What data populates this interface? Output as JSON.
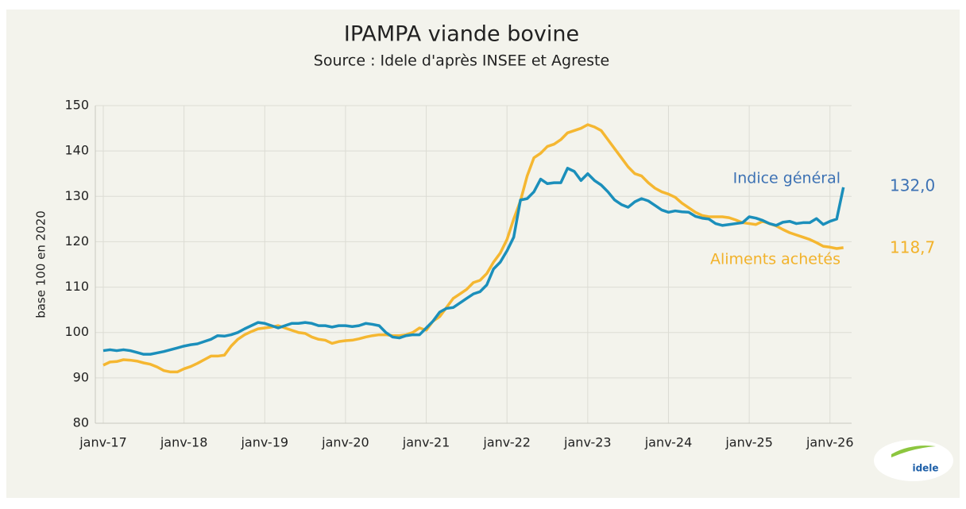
{
  "chart_data": {
    "type": "line",
    "title": "IPAMPA viande bovine",
    "subtitle": "Source : Idele d'après INSEE et Agreste",
    "ylabel": "base 100 en 2020",
    "logo": "idele",
    "categories": [
      "janv-17",
      null,
      null,
      null,
      null,
      null,
      null,
      null,
      null,
      null,
      null,
      null,
      "janv-18",
      null,
      null,
      null,
      null,
      null,
      null,
      null,
      null,
      null,
      null,
      null,
      "janv-19",
      null,
      null,
      null,
      null,
      null,
      null,
      null,
      null,
      null,
      null,
      null,
      "janv-20",
      null,
      null,
      null,
      null,
      null,
      null,
      null,
      null,
      null,
      null,
      null,
      "janv-21",
      null,
      null,
      null,
      null,
      null,
      null,
      null,
      null,
      null,
      null,
      null,
      "janv-22",
      null,
      null,
      null,
      null,
      null,
      null,
      null,
      null,
      null,
      null,
      null,
      "janv-23",
      null,
      null,
      null,
      null,
      null,
      null,
      null,
      null,
      null,
      null,
      null,
      "janv-24",
      null,
      null,
      null,
      null,
      null,
      null,
      null,
      null,
      null,
      null,
      null,
      "janv-25",
      null,
      null,
      null,
      null,
      null,
      null,
      null,
      null,
      null,
      null,
      null,
      "janv-26",
      null,
      null
    ],
    "ylim": [
      80,
      150
    ],
    "yticks": [
      80,
      90,
      100,
      110,
      120,
      130,
      140,
      150
    ],
    "grid": true,
    "series": [
      {
        "name": "Indice général",
        "color": "#1b8fbb",
        "label_color": "#3d72b4",
        "values": [
          96,
          96.2,
          96,
          96.2,
          96,
          95.6,
          95.2,
          95.2,
          95.5,
          95.8,
          96.2,
          96.6,
          97,
          97.3,
          97.5,
          98,
          98.5,
          99.3,
          99.2,
          99.5,
          100,
          100.8,
          101.5,
          102.2,
          102,
          101.5,
          101,
          101.5,
          102,
          102,
          102.2,
          102,
          101.5,
          101.5,
          101.2,
          101.5,
          101.5,
          101.3,
          101.5,
          102,
          101.8,
          101.5,
          100,
          99,
          98.8,
          99.3,
          99.5,
          99.5,
          101,
          102.5,
          104.5,
          105.3,
          105.5,
          106.5,
          107.5,
          108.5,
          109,
          110.5,
          114,
          115.5,
          118,
          121,
          129.2,
          129.5,
          131,
          133.8,
          132.8,
          133,
          133,
          136.2,
          135.5,
          133.5,
          135,
          133.5,
          132.5,
          131,
          129.2,
          128.2,
          127.6,
          128.8,
          129.5,
          129,
          128,
          127,
          126.5,
          126.8,
          126.6,
          126.5,
          125.6,
          125.2,
          125,
          124,
          123.6,
          123.8,
          124,
          124.2,
          125.5,
          125.2,
          124.7,
          124,
          123.6,
          124.3,
          124.5,
          124,
          124.2,
          124.2,
          125.1,
          123.8,
          124.5,
          125,
          132
        ],
        "value_labels": [
          null,
          null,
          null,
          null,
          null,
          null,
          null,
          null,
          null,
          null,
          null,
          null,
          null,
          null,
          null,
          null,
          null,
          null,
          null,
          null,
          null,
          null,
          null,
          null,
          null,
          null,
          null,
          null,
          null,
          null,
          null,
          null,
          null,
          null,
          null,
          null,
          null,
          null,
          null,
          null,
          null,
          null,
          null,
          null,
          null,
          null,
          null,
          null,
          null,
          null,
          null,
          null,
          null,
          null,
          null,
          null,
          null,
          null,
          null,
          null,
          null,
          null,
          null,
          null,
          null,
          null,
          null,
          null,
          null,
          null,
          null,
          null,
          null,
          null,
          null,
          null,
          null,
          null,
          null,
          null,
          null,
          null,
          null,
          null,
          null,
          null,
          null,
          null,
          null,
          null,
          null,
          null,
          null,
          null,
          null,
          null,
          null,
          null,
          null,
          null,
          null,
          null,
          null,
          null,
          null,
          null,
          null,
          null,
          null,
          null,
          "132,0"
        ]
      },
      {
        "name": "Aliments achetés",
        "color": "#f5b731",
        "label_color": "#f2b22a",
        "values": [
          92.8,
          93.5,
          93.6,
          94,
          93.9,
          93.7,
          93.3,
          93,
          92.4,
          91.6,
          91.3,
          91.3,
          92,
          92.5,
          93.2,
          94,
          94.8,
          94.8,
          95,
          97,
          98.5,
          99.5,
          100.2,
          100.8,
          101,
          101.2,
          101.5,
          101,
          100.5,
          100,
          99.8,
          99,
          98.5,
          98.3,
          97.6,
          98,
          98.2,
          98.3,
          98.6,
          99,
          99.3,
          99.5,
          99.5,
          99.3,
          99.3,
          99.5,
          100,
          101,
          100.5,
          102.5,
          103.5,
          105.5,
          107.5,
          108.5,
          109.5,
          111,
          111.5,
          113,
          115.5,
          117.5,
          120.5,
          125,
          129,
          134.5,
          138.5,
          139.5,
          141,
          141.5,
          142.5,
          144,
          144.5,
          145,
          145.8,
          145.3,
          144.5,
          142.5,
          140.5,
          138.5,
          136.5,
          135,
          134.5,
          133,
          131.8,
          131,
          130.5,
          129.8,
          128.5,
          127.5,
          126.5,
          125.8,
          125.5,
          125.5,
          125.5,
          125.3,
          124.8,
          124.2,
          124,
          123.8,
          124.5,
          124,
          123.5,
          122.7,
          122,
          121.5,
          121,
          120.5,
          119.8,
          119,
          118.8,
          118.5,
          118.7
        ],
        "value_labels": [
          null,
          null,
          null,
          null,
          null,
          null,
          null,
          null,
          null,
          null,
          null,
          null,
          null,
          null,
          null,
          null,
          null,
          null,
          null,
          null,
          null,
          null,
          null,
          null,
          null,
          null,
          null,
          null,
          null,
          null,
          null,
          null,
          null,
          null,
          null,
          null,
          null,
          null,
          null,
          null,
          null,
          null,
          null,
          null,
          null,
          null,
          null,
          null,
          null,
          null,
          null,
          null,
          null,
          null,
          null,
          null,
          null,
          null,
          null,
          null,
          null,
          null,
          null,
          null,
          null,
          null,
          null,
          null,
          null,
          null,
          null,
          null,
          null,
          null,
          null,
          null,
          null,
          null,
          null,
          null,
          null,
          null,
          null,
          null,
          null,
          null,
          null,
          null,
          null,
          null,
          null,
          null,
          null,
          null,
          null,
          null,
          null,
          null,
          null,
          null,
          null,
          null,
          null,
          null,
          null,
          null,
          null,
          null,
          null,
          null,
          "118,7"
        ]
      }
    ]
  }
}
